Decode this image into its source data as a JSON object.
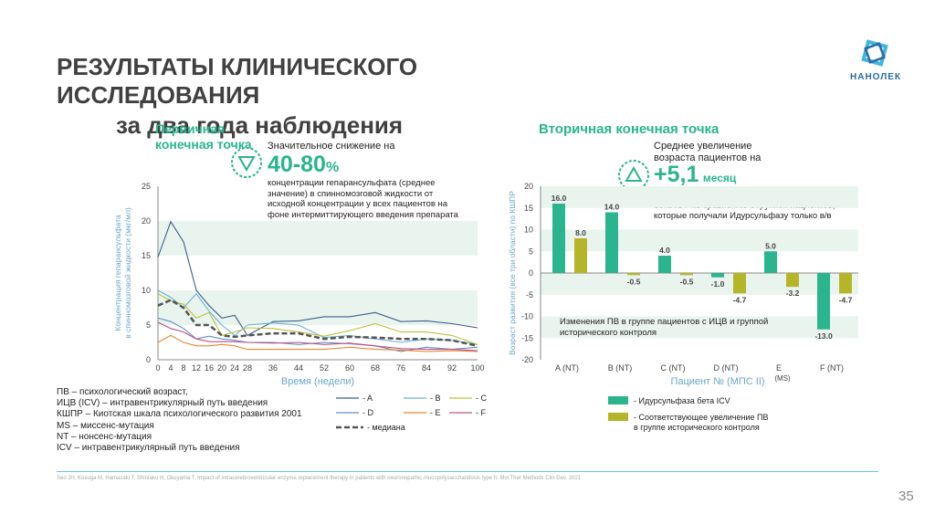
{
  "header": {
    "title": "РЕЗУЛЬТАТЫ КЛИНИЧЕСКОГО ИССЛЕДОВАНИЯ",
    "subtitle": "за два года наблюдения",
    "logo_text": "НАНОЛЕК"
  },
  "primary": {
    "heading": "Первичная конечная точка",
    "lead": "Значительное снижение на",
    "number": "40-80",
    "unit": "%",
    "desc": "концентрации гепарансульфата (среднее значение) в спинномозговой жидкости от исходной концентрации у всех пациентов на фоне интермиттирующего введения препарата Идурсульфаза бета"
  },
  "secondary": {
    "heading": "Вторичная конечная точка",
    "lead": "Среднее увеличение возраста пациентов на",
    "number": "+5,1",
    "unit": "месяц",
    "desc": "получавших лечение препаратом Идурсульфаза бета ICV по сравнению с группой пациентов, которые получали Идурсульфазу только в/в",
    "annotation": "Изменения ПВ в группе пациентов с ИЦВ и группой исторического контроля"
  },
  "notes": [
    "ПВ – психологический возраст,",
    "ИЦВ (ICV) – интравентрикулярный путь введения",
    "КШПР – Киотская шкала психологического развития 2001",
    "MS – миссенс-мутация",
    "NT – нонсенс-мутация",
    "ICV – интравентрикулярный путь введения"
  ],
  "footer": "Seo JH, Kosuga M, Hamazaki T, Shintaku H, Okuyama T. Impact of intracerebroventricular enzyme replacement therapy in patients with neuronopathic mucopolysaccharidosis type II. Mol Ther Methods Clin Dev. 2021",
  "page_number": "35",
  "colors": {
    "accent": "#2ab58f",
    "olive": "#b5b52a",
    "band": "#eaf4ee",
    "rule": "#6ac6e6"
  },
  "chart_data": [
    {
      "type": "line",
      "xlabel": "Время (недели)",
      "ylabel": "Концентрация гепарансульфата в спинномозговой жидкости (мкг/мл)",
      "ylim": [
        0,
        25
      ],
      "yticks": [
        0,
        5,
        10,
        15,
        20,
        25
      ],
      "xticks": [
        0,
        4,
        8,
        12,
        16,
        20,
        24,
        28,
        36,
        44,
        52,
        60,
        68,
        76,
        84,
        92,
        100
      ],
      "series": [
        {
          "name": "- A",
          "color": "#3a5f8c",
          "dash": false,
          "x": [
            0,
            4,
            8,
            12,
            16,
            20,
            24,
            28,
            36,
            44,
            52,
            60,
            68,
            76,
            84,
            92,
            100
          ],
          "y": [
            14.8,
            19.9,
            17.0,
            10.0,
            7.8,
            6.0,
            6.4,
            3.5,
            5.5,
            5.6,
            6.2,
            6.2,
            6.8,
            5.5,
            5.6,
            5.2,
            4.6
          ]
        },
        {
          "name": "- B",
          "color": "#6ab0d8",
          "dash": false,
          "x": [
            0,
            4,
            8,
            12,
            16,
            20,
            24,
            28,
            36,
            44,
            52,
            60,
            68,
            76,
            84,
            92,
            100
          ],
          "y": [
            10.0,
            9.0,
            7.5,
            9.5,
            7.0,
            5.0,
            3.5,
            5.0,
            5.3,
            5.0,
            3.2,
            3.5,
            3.0,
            2.5,
            3.0,
            2.8,
            2.2
          ]
        },
        {
          "name": "- C",
          "color": "#b9c23a",
          "dash": false,
          "x": [
            0,
            4,
            8,
            12,
            16,
            20,
            24,
            28,
            36,
            44,
            52,
            60,
            68,
            76,
            84,
            92,
            100
          ],
          "y": [
            9.5,
            8.5,
            8.0,
            6.0,
            6.8,
            3.5,
            4.0,
            4.6,
            4.5,
            4.0,
            3.4,
            4.2,
            5.2,
            4.0,
            4.0,
            3.5,
            2.2
          ]
        },
        {
          "name": "- D",
          "color": "#5f8fc6",
          "dash": false,
          "x": [
            0,
            4,
            8,
            12,
            16,
            20,
            24,
            28,
            36,
            44,
            52,
            60,
            68,
            76,
            84,
            92,
            100
          ],
          "y": [
            6.0,
            5.5,
            4.5,
            3.0,
            3.4,
            3.0,
            2.8,
            2.5,
            2.5,
            2.2,
            2.5,
            2.3,
            2.0,
            1.2,
            1.8,
            1.5,
            1.8
          ]
        },
        {
          "name": "- E",
          "color": "#e8862e",
          "dash": false,
          "x": [
            0,
            4,
            8,
            12,
            16,
            20,
            24,
            28,
            36,
            44,
            52,
            60,
            68,
            76,
            84,
            92,
            100
          ],
          "y": [
            2.5,
            3.5,
            2.5,
            2.0,
            2.0,
            2.2,
            2.0,
            1.5,
            1.5,
            1.5,
            1.5,
            1.8,
            1.5,
            1.4,
            1.2,
            1.3,
            1.2
          ]
        },
        {
          "name": "- F",
          "color": "#c0508a",
          "dash": false,
          "x": [
            0,
            4,
            8,
            12,
            16,
            20,
            24,
            28,
            36,
            44,
            52,
            60,
            68,
            76,
            84,
            92,
            100
          ],
          "y": [
            5.4,
            4.5,
            4.0,
            3.0,
            2.6,
            2.6,
            2.6,
            2.5,
            2.4,
            2.5,
            2.2,
            2.4,
            2.0,
            1.6,
            1.5,
            1.5,
            1.3
          ]
        },
        {
          "name": "- медиана",
          "color": "#555555",
          "dash": true,
          "x": [
            0,
            4,
            8,
            12,
            16,
            20,
            24,
            28,
            36,
            44,
            52,
            60,
            68,
            76,
            84,
            92,
            100
          ],
          "y": [
            7.8,
            8.6,
            7.5,
            5.0,
            5.0,
            3.5,
            3.3,
            3.5,
            3.8,
            3.8,
            3.0,
            3.3,
            3.2,
            3.0,
            3.0,
            2.8,
            2.0
          ]
        }
      ]
    },
    {
      "type": "bar",
      "xlabel": "Пациент № (МПС II)",
      "ylabel": "Возраст развития (все три области) по КШПР",
      "ylim": [
        -20,
        20
      ],
      "yticks": [
        -20,
        -15,
        -10,
        -5,
        0,
        5,
        10,
        15,
        20
      ],
      "categories": [
        "A (NT)",
        "B (NT)",
        "C (NT)",
        "D (NT)",
        "E (MS)",
        "F (NT)"
      ],
      "series": [
        {
          "name": "- Идурсульфаза бета ICV",
          "color": "#2ab58f",
          "values": [
            16.0,
            14.0,
            4.0,
            -1.0,
            5.0,
            -13.0
          ]
        },
        {
          "name": "- Соответствующее увеличение ПВ в группе исторического контроля",
          "color": "#b5b52a",
          "values": [
            8.0,
            -0.5,
            -0.5,
            -4.7,
            -3.2,
            -4.7
          ]
        }
      ]
    }
  ]
}
